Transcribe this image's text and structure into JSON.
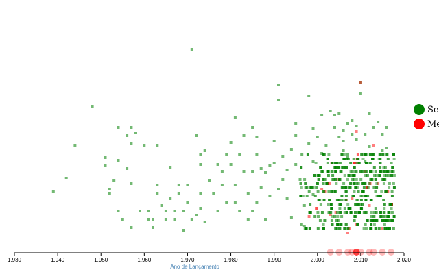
{
  "chart_data": {
    "type": "scatter",
    "xlabel": "Ano de Lançamento",
    "ylabel": "",
    "xlim": [
      1930,
      2020
    ],
    "xticks": [
      "1,930",
      "1,940",
      "1,950",
      "1,960",
      "1,970",
      "1,980",
      "1,990",
      "2,000",
      "2,010",
      "2,020"
    ],
    "grid": false,
    "legend_position": "right",
    "colors": {
      "green": "#008000",
      "red": "#ff0000",
      "axis": "#000000",
      "xlabel": "#4682b4"
    },
    "series": [
      {
        "name": "Sex",
        "color": "#008000",
        "points": [
          [
            1939,
            280
          ],
          [
            1942,
            260
          ],
          [
            1944,
            212
          ],
          [
            1948,
            156
          ],
          [
            1951,
            230
          ],
          [
            1951,
            242
          ],
          [
            1952,
            282
          ],
          [
            1952,
            276
          ],
          [
            1953,
            264
          ],
          [
            1954,
            186
          ],
          [
            1954,
            234
          ],
          [
            1954,
            308
          ],
          [
            1955,
            320
          ],
          [
            1956,
            198
          ],
          [
            1956,
            246
          ],
          [
            1957,
            186
          ],
          [
            1957,
            210
          ],
          [
            1957,
            268
          ],
          [
            1957,
            332
          ],
          [
            1958,
            194
          ],
          [
            1959,
            308
          ],
          [
            1960,
            212
          ],
          [
            1961,
            320
          ],
          [
            1961,
            308
          ],
          [
            1962,
            332
          ],
          [
            1962,
            320
          ],
          [
            1963,
            212
          ],
          [
            1963,
            270
          ],
          [
            1963,
            282
          ],
          [
            1964,
            300
          ],
          [
            1965,
            308
          ],
          [
            1965,
            320
          ],
          [
            1966,
            244
          ],
          [
            1966,
            290
          ],
          [
            1967,
            308
          ],
          [
            1967,
            320
          ],
          [
            1968,
            270
          ],
          [
            1968,
            282
          ],
          [
            1969,
            308
          ],
          [
            1969,
            336
          ],
          [
            1970,
            296
          ],
          [
            1970,
            270
          ],
          [
            1971,
            72
          ],
          [
            1971,
            320
          ],
          [
            1972,
            198
          ],
          [
            1972,
            314
          ],
          [
            1973,
            226
          ],
          [
            1973,
            240
          ],
          [
            1973,
            282
          ],
          [
            1973,
            304
          ],
          [
            1974,
            220
          ],
          [
            1974,
            324
          ],
          [
            1975,
            264
          ],
          [
            1976,
            282
          ],
          [
            1977,
            240
          ],
          [
            1977,
            308
          ],
          [
            1978,
            250
          ],
          [
            1978,
            270
          ],
          [
            1979,
            226
          ],
          [
            1979,
            296
          ],
          [
            1980,
            208
          ],
          [
            1980,
            240
          ],
          [
            1981,
            172
          ],
          [
            1981,
            270
          ],
          [
            1981,
            296
          ],
          [
            1982,
            226
          ],
          [
            1982,
            308
          ],
          [
            1983,
            198
          ],
          [
            1983,
            250
          ],
          [
            1984,
            282
          ],
          [
            1984,
            320
          ],
          [
            1985,
            186
          ],
          [
            1985,
            250
          ],
          [
            1985,
            308
          ],
          [
            1986,
            200
          ],
          [
            1986,
            226
          ],
          [
            1986,
            296
          ],
          [
            1987,
            246
          ],
          [
            1987,
            274
          ],
          [
            1988,
            252
          ],
          [
            1988,
            320
          ],
          [
            1989,
            242
          ],
          [
            1989,
            286
          ],
          [
            1990,
            206
          ],
          [
            1990,
            238
          ],
          [
            1991,
            146
          ],
          [
            1991,
            124
          ],
          [
            1991,
            276
          ],
          [
            1992,
            228
          ],
          [
            1992,
            262
          ],
          [
            1993,
            248
          ],
          [
            1993,
            290
          ],
          [
            1994,
            218
          ],
          [
            1994,
            318
          ],
          [
            1995,
            180
          ],
          [
            1995,
            198
          ],
          [
            1995,
            240
          ],
          [
            1996,
            262
          ],
          [
            1997,
            300
          ],
          [
            1997,
            330
          ],
          [
            1998,
            140
          ],
          [
            1998,
            210
          ],
          [
            1999,
            188
          ],
          [
            1999,
            236
          ],
          [
            1999,
            284
          ],
          [
            2000,
            200
          ],
          [
            2001,
            168
          ],
          [
            2001,
            224
          ],
          [
            2002,
            212
          ],
          [
            2003,
            162
          ],
          [
            2004,
            168
          ],
          [
            2004,
            186
          ],
          [
            2005,
            166
          ],
          [
            2005,
            200
          ],
          [
            2006,
            190
          ],
          [
            2006,
            206
          ],
          [
            2006,
            220
          ],
          [
            2007,
            180
          ],
          [
            2007,
            230
          ],
          [
            2008,
            176
          ],
          [
            2008,
            196
          ],
          [
            2009,
            204
          ],
          [
            2009,
            184
          ],
          [
            2010,
            136
          ],
          [
            2010,
            120
          ],
          [
            2011,
            196
          ],
          [
            2011,
            236
          ],
          [
            2012,
            166
          ],
          [
            2012,
            214
          ],
          [
            2013,
            186
          ],
          [
            2013,
            232
          ],
          [
            2014,
            178
          ],
          [
            2015,
            196
          ],
          [
            2015,
            220
          ],
          [
            2016,
            186
          ],
          [
            2016,
            216
          ]
        ]
      },
      {
        "name": "Me",
        "color": "#ff0000",
        "points": [
          [
            2010,
            120
          ],
          [
            2009,
            192
          ],
          [
            2013,
            212
          ],
          [
            2011,
            250
          ],
          [
            2005,
            262
          ],
          [
            2014,
            268
          ],
          [
            2001,
            276
          ],
          [
            2008,
            290
          ],
          [
            2012,
            300
          ],
          [
            2003,
            314
          ],
          [
            2009,
            328
          ],
          [
            2007,
            340
          ],
          [
            2015,
            334
          ]
        ]
      }
    ],
    "rug": {
      "name": "Me",
      "color": "#ff0000",
      "x": [
        2003,
        2005,
        2007,
        2008,
        2009,
        2010,
        2012,
        2013,
        2015,
        2017
      ]
    }
  }
}
